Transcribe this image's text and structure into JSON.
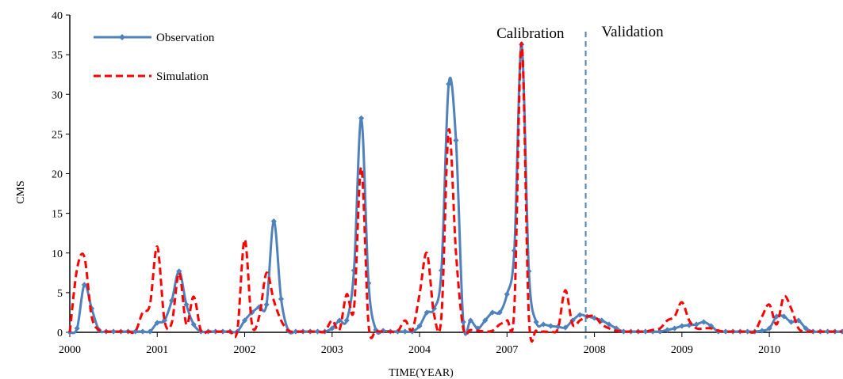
{
  "chart_data": {
    "type": "line",
    "xlabel": "TIME(YEAR)",
    "ylabel": "CMS",
    "ylim": [
      0,
      40
    ],
    "yticks": [
      0,
      5,
      10,
      15,
      20,
      25,
      30,
      35,
      40
    ],
    "x_ticks": [
      {
        "label": "2000",
        "pos": 0
      },
      {
        "label": "2001",
        "pos": 12
      },
      {
        "label": "2002",
        "pos": 24
      },
      {
        "label": "2003",
        "pos": 36
      },
      {
        "label": "2004",
        "pos": 48
      },
      {
        "label": "2007",
        "pos": 60
      },
      {
        "label": "2008",
        "pos": 72
      },
      {
        "label": "2009",
        "pos": 84
      },
      {
        "label": "2010",
        "pos": 96
      }
    ],
    "x_max": 106,
    "split_at": 70.8,
    "annotations": {
      "left": "Calibration",
      "right": "Validation"
    },
    "legend_position": "top-left",
    "grid": false,
    "series": [
      {
        "name": "Observation",
        "style": "solid-diamond",
        "color": "#4f81bd",
        "values": [
          0.0,
          0.5,
          6.0,
          3.0,
          0.3,
          0.1,
          0.1,
          0.1,
          0.1,
          0.1,
          0.1,
          0.1,
          1.2,
          1.5,
          4.0,
          7.7,
          3.5,
          1.0,
          0.1,
          0.1,
          0.1,
          0.1,
          0.1,
          0.1,
          1.5,
          2.5,
          3.2,
          3.5,
          14.0,
          4.2,
          0.2,
          0.1,
          0.1,
          0.1,
          0.1,
          0.1,
          0.5,
          1.5,
          1.5,
          7.8,
          27.0,
          6.2,
          0.3,
          0.2,
          0.1,
          0.1,
          0.1,
          0.1,
          0.8,
          2.5,
          3.0,
          7.8,
          31.3,
          24.2,
          1.3,
          1.5,
          0.5,
          1.5,
          2.5,
          2.5,
          4.8,
          10.3,
          36.3,
          7.7,
          1.3,
          1.0,
          0.8,
          0.7,
          0.6,
          1.5,
          2.2,
          2.0,
          1.8,
          1.5,
          1.0,
          0.5,
          0.1,
          0.1,
          0.1,
          0.1,
          0.1,
          0.1,
          0.3,
          0.5,
          0.8,
          0.9,
          1.0,
          1.3,
          0.8,
          0.1,
          0.1,
          0.1,
          0.1,
          0.1,
          0.1,
          0.2,
          0.5,
          2.0,
          2.0,
          1.3,
          1.5,
          0.5,
          0.1,
          0.1,
          0.1,
          0.1,
          0.1
        ]
      },
      {
        "name": "Simulation",
        "style": "dashed",
        "color": "#ff0000",
        "values": [
          0.0,
          8.0,
          9.5,
          2.0,
          0.3,
          0.1,
          0.1,
          0.1,
          0.1,
          0.1,
          2.5,
          3.5,
          10.8,
          1.5,
          1.2,
          7.5,
          1.0,
          4.5,
          0.2,
          0.1,
          0.1,
          0.1,
          0.1,
          0.3,
          11.7,
          1.0,
          2.0,
          7.5,
          4.0,
          1.5,
          0.2,
          0.1,
          0.1,
          0.1,
          0.1,
          0.1,
          1.5,
          0.3,
          4.8,
          3.0,
          20.8,
          1.0,
          0.2,
          0.1,
          0.1,
          0.1,
          1.5,
          0.3,
          4.8,
          10.0,
          2.2,
          2.0,
          25.5,
          10.0,
          0.5,
          0.3,
          0.2,
          0.1,
          0.2,
          1.0,
          1.5,
          3.0,
          36.5,
          2.0,
          0.2,
          0.1,
          0.1,
          0.5,
          5.3,
          1.0,
          1.5,
          2.0,
          2.0,
          1.0,
          0.5,
          0.2,
          0.1,
          0.1,
          0.1,
          0.1,
          0.3,
          0.5,
          1.5,
          2.0,
          3.8,
          1.5,
          0.5,
          0.5,
          0.5,
          0.2,
          0.1,
          0.1,
          0.1,
          0.1,
          0.1,
          2.0,
          3.5,
          1.0,
          4.5,
          3.0,
          0.5,
          0.1,
          0.1,
          0.1,
          0.1,
          0.1,
          0.1
        ]
      }
    ]
  }
}
